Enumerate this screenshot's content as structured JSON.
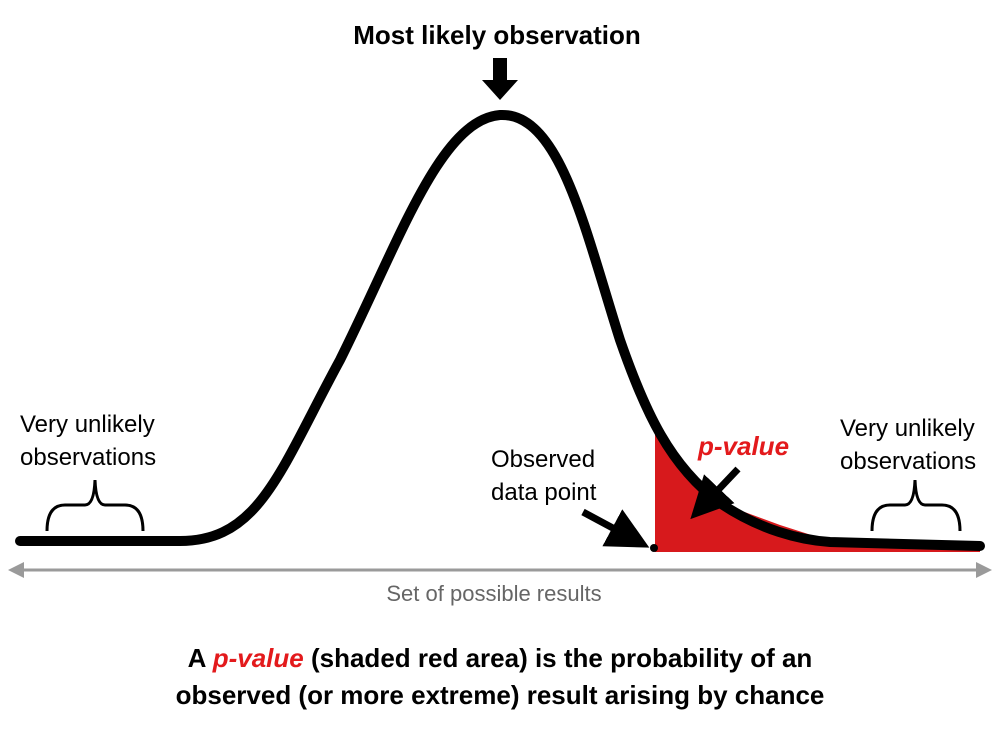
{
  "diagram": {
    "title": "Most likely observation",
    "left_label": [
      "Very unlikely",
      "observations"
    ],
    "right_label": [
      "Very unlikely",
      "observations"
    ],
    "observed_label": [
      "Observed",
      "data point"
    ],
    "pvalue_label": "p-value",
    "axis_label": "Set of possible results"
  },
  "caption": {
    "prefix": "A ",
    "emphasis": "p-value",
    "line1_rest": " (shaded red area) is the probability of an",
    "line2": "observed (or more extreme) result arising by chance"
  },
  "colors": {
    "curve": "#000000",
    "shade": "#d7191c",
    "pvalue_text": "#e31a1c",
    "axis_arrow": "#9a9a9a",
    "axis_text": "#666666"
  }
}
